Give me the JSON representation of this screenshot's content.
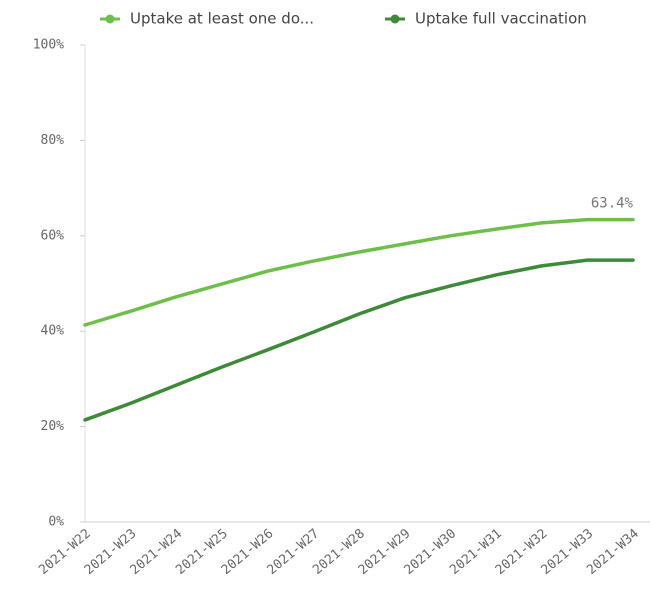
{
  "chart_data": {
    "type": "line",
    "categories": [
      "2021-W22",
      "2021-W23",
      "2021-W24",
      "2021-W25",
      "2021-W26",
      "2021-W27",
      "2021-W28",
      "2021-W29",
      "2021-W30",
      "2021-W31",
      "2021-W32",
      "2021-W33",
      "2021-W34"
    ],
    "series": [
      {
        "name": "Uptake at least one do...",
        "color": "#6cc04a",
        "values": [
          41.3,
          44.2,
          47.2,
          49.9,
          52.6,
          54.7,
          56.6,
          58.3,
          60.0,
          61.4,
          62.7,
          63.4,
          63.4
        ],
        "value_labels": [
          null,
          null,
          null,
          null,
          null,
          null,
          null,
          null,
          null,
          null,
          null,
          null,
          "63.4%"
        ]
      },
      {
        "name": "Uptake full vaccination",
        "color": "#3d8b37",
        "values": [
          21.4,
          24.9,
          28.7,
          32.5,
          36.1,
          39.8,
          43.6,
          47.0,
          49.5,
          51.8,
          53.7,
          54.9,
          54.9
        ]
      }
    ],
    "ylim": [
      0,
      100
    ],
    "yticks": [
      {
        "value": 0,
        "label": "0%"
      },
      {
        "value": 20,
        "label": "20%"
      },
      {
        "value": 40,
        "label": "40%"
      },
      {
        "value": 60,
        "label": "60%"
      },
      {
        "value": 80,
        "label": "80%"
      },
      {
        "value": 100,
        "label": "100%"
      }
    ],
    "legend": "top",
    "grid": false
  }
}
